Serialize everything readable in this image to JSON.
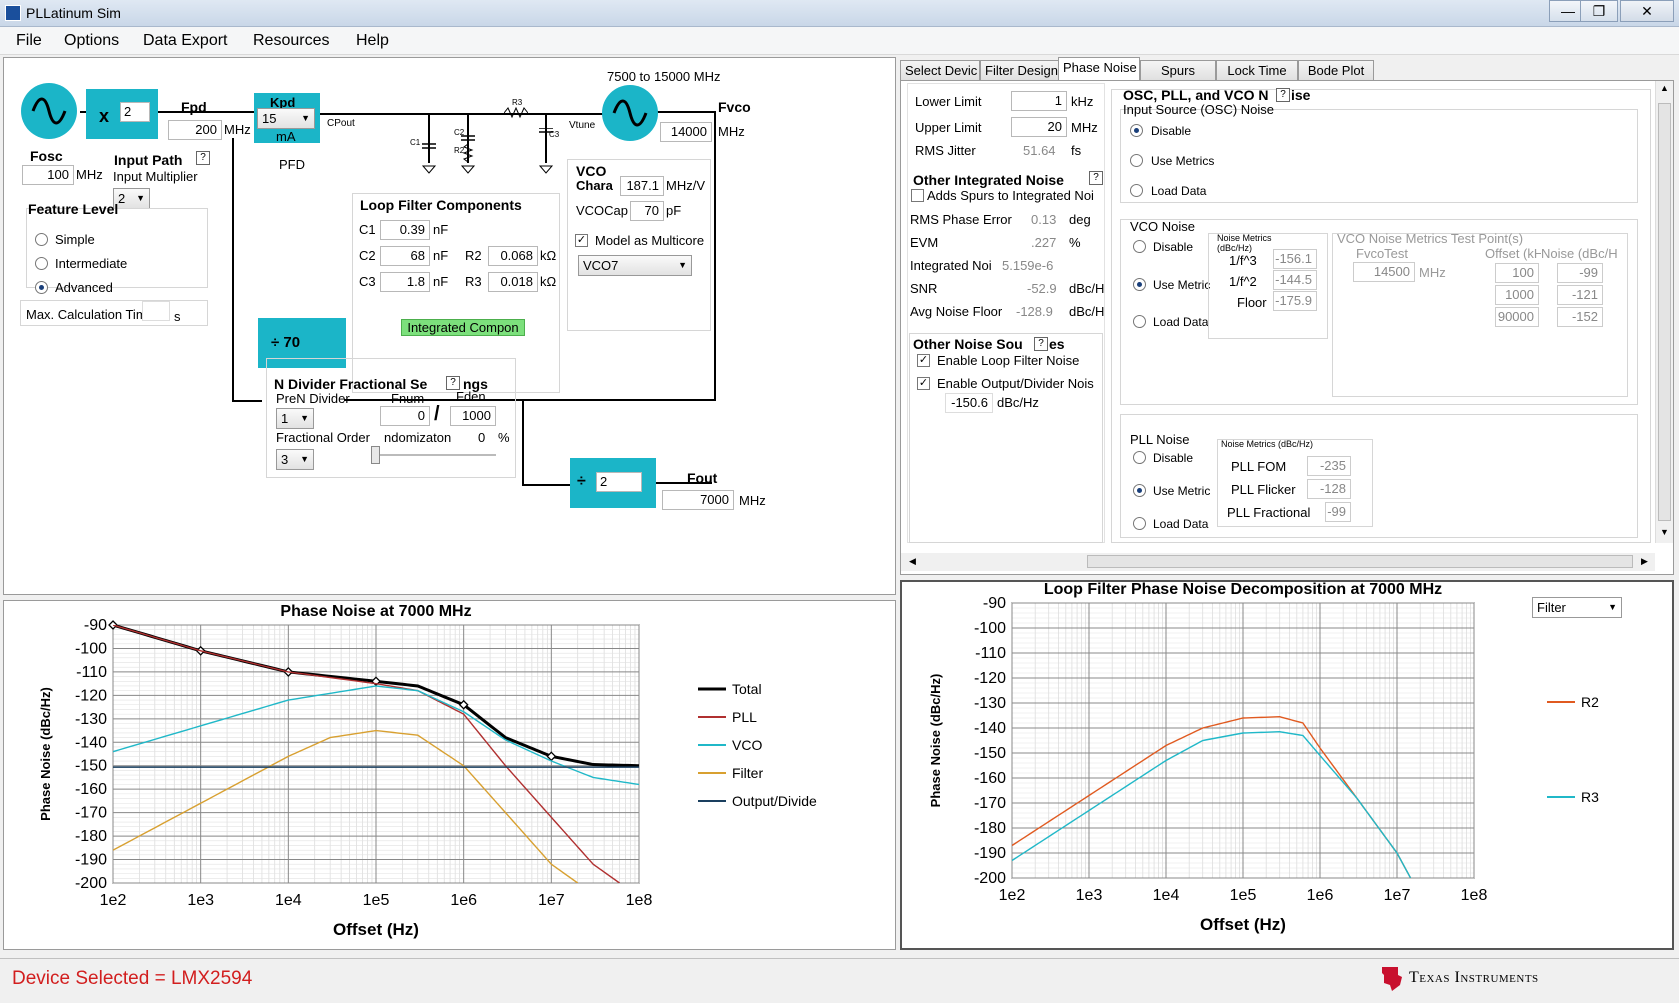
{
  "window": {
    "title": "PLLatinum Sim",
    "controls": [
      "—",
      "❐",
      "✕"
    ]
  },
  "menu": [
    "File",
    "Options",
    "Data Export",
    "Resources",
    "Help"
  ],
  "schematic": {
    "osc_label": "Fosc",
    "osc_value": "100",
    "osc_unit": "MHz",
    "multiplier_prefix": "x",
    "multiplier_value": "2",
    "input_path_label": "Input Path",
    "input_multiplier_label": "Input Multiplier",
    "input_multiplier_value": "2",
    "fpd_label": "Fpd",
    "fpd_value": "200",
    "fpd_unit": "MHz",
    "kpd_label": "Kpd",
    "kpd_value": "15",
    "kpd_unit": "mA",
    "pfd_label": "PFD",
    "cpout_label": "CPout",
    "vtune_label": "Vtune",
    "vco_range_label": "7500 to 15000 MHz",
    "fvco_label": "Fvco",
    "fvco_value": "14000",
    "fvco_unit": "MHz",
    "c1_net": "C1",
    "c2_net": "C2",
    "r2_net": "R2",
    "r3_net": "R3",
    "c3_net": "C3",
    "feature_level_label": "Feature Level",
    "feature_levels": [
      "Simple",
      "Intermediate",
      "Advanced"
    ],
    "max_calc_label": "Max. Calculation Time",
    "max_calc_unit": "s",
    "loop_filter_title": "Loop Filter Components",
    "c1_label": "C1",
    "c1_value": "0.39",
    "c1_unit": "nF",
    "c2_label": "C2",
    "c2_value": "68",
    "c2_unit": "nF",
    "c3_label": "C3",
    "c3_value": "1.8",
    "c3_unit": "nF",
    "r2_label": "R2",
    "r2_value": "0.068",
    "r2_unit": "kΩ",
    "r3_label": "R3",
    "r3_value": "0.018",
    "r3_unit": "kΩ",
    "integrated_button": "Integrated Compon",
    "vco_title": "VCO",
    "vco_chara_label": "Chara",
    "vco_kvco_value": "187.1",
    "vco_kvco_unit": "MHz/V",
    "vcocap_label": "VCOCap",
    "vcocap_value": "70",
    "vcocap_unit": "pF",
    "multicore_label": "Model as Multicore",
    "vco_select": "VCO7",
    "n_divider_label": "÷ 70",
    "n_frac_title": "N Divider Fractional Se",
    "n_frac_title_tail": "ngs",
    "pren_label": "PreN Divider",
    "pren_value": "1",
    "fnum_label": "Fnum",
    "fnum_value": "0",
    "fden_label": "Fden",
    "fden_value": "1000",
    "frac_slash": "/",
    "frac_order_label": "Fractional Order",
    "frac_order_value": "3",
    "random_label": "ndomizaton",
    "random_value": "0",
    "random_unit": "%",
    "out_div_prefix": "÷",
    "out_div_value": "2",
    "fout_label": "Fout",
    "fout_value": "7000",
    "fout_unit": "MHz"
  },
  "tabs": [
    "Select Devic",
    "Filter Design",
    "Phase Noise",
    "Spurs",
    "Lock Time",
    "Bode Plot"
  ],
  "phase_noise": {
    "lower_limit_label": "Lower Limit",
    "lower_limit_value": "1",
    "lower_limit_unit": "kHz",
    "upper_limit_label": "Upper Limit",
    "upper_limit_value": "20",
    "upper_limit_unit": "MHz",
    "rms_jitter_label": "RMS Jitter",
    "rms_jitter_value": "51.64",
    "rms_jitter_unit": "fs",
    "other_integrated_label": "Other Integrated Noise",
    "add_spurs_label": "Adds Spurs to Integrated Noi",
    "rms_phase_error_label": "RMS Phase Error",
    "rms_phase_error_value": "0.13",
    "rms_phase_error_unit": "deg",
    "evm_label": "EVM",
    "evm_value": ".227",
    "evm_unit": "%",
    "integrated_noise_label": "Integrated Noi",
    "integrated_noise_value": "5.159e-6",
    "snr_label": "SNR",
    "snr_value": "-52.9",
    "snr_unit": "dBc/H",
    "avg_floor_label": "Avg Noise Floor",
    "avg_floor_value": "-128.9",
    "avg_floor_unit": "dBc/H",
    "other_sources_label": "Other Noise Sou",
    "other_sources_tail": "es",
    "enable_loop_filter_label": "Enable Loop Filter Noise",
    "enable_output_label": "Enable Output/Divider Nois",
    "output_noise_value": "-150.6",
    "output_noise_unit": "dBc/Hz",
    "osc_group_title": "OSC, PLL, and VCO N",
    "osc_group_tail": "ise",
    "input_source_label": "Input Source (OSC) Noise",
    "opt_disable": "Disable",
    "opt_use_metrics": "Use Metrics",
    "opt_use_metric": "Use Metric",
    "opt_load_data": "Load Data",
    "vco_noise_label": "VCO Noise",
    "noise_metrics_label": "Noise Metrics",
    "noise_metrics_unit": "(dBc/Hz)",
    "noise_metrics_db": "Noise Metrics (dBc/Hz)",
    "one_f3_label": "1/f^3",
    "one_f3_value": "-156.1",
    "one_f2_label": "1/f^2",
    "one_f2_value": "-144.5",
    "floor_label": "Floor",
    "floor_value": "-175.9",
    "test_points_label": "VCO Noise Metrics Test Point(s)",
    "fvcotest_label": "FvcoTest",
    "fvcotest_value": "14500",
    "fvcotest_unit": "MHz",
    "offset_col": "Offset (kH",
    "noise_col": "Noise (dBc/H",
    "test_rows": [
      [
        "100",
        "-99"
      ],
      [
        "1000",
        "-121"
      ],
      [
        "90000",
        "-152"
      ]
    ],
    "pll_noise_label": "PLL Noise",
    "pll_fom_label": "PLL FOM",
    "pll_fom_value": "-235",
    "pll_flicker_label": "PLL Flicker",
    "pll_flicker_value": "-128",
    "pll_frac_label": "PLL Fractional",
    "pll_frac_value": "-99"
  },
  "chart_data": [
    {
      "type": "line",
      "title": "Phase Noise at 7000 MHz",
      "xlabel": "Offset (Hz)",
      "ylabel": "Phase Noise (dBc/Hz)",
      "xscale": "log",
      "xlim": [
        100,
        100000000
      ],
      "ylim": [
        -200,
        -90
      ],
      "xticks": [
        "1e2",
        "1e3",
        "1e4",
        "1e5",
        "1e6",
        "1e7",
        "1e8"
      ],
      "yticks": [
        "-90",
        "-100",
        "-110",
        "-120",
        "-130",
        "-140",
        "-150",
        "-160",
        "-170",
        "-180",
        "-190",
        "-200"
      ],
      "legend": "right",
      "series": [
        {
          "name": "Total",
          "color": "#000000",
          "x": [
            100,
            1000,
            10000,
            100000,
            300000,
            1000000,
            3000000,
            10000000,
            30000000,
            100000000
          ],
          "y": [
            -90,
            -101,
            -110,
            -114,
            -116,
            -124,
            -138,
            -146,
            -149.5,
            -150
          ]
        },
        {
          "name": "PLL",
          "color": "#b03030",
          "x": [
            100,
            1000,
            10000,
            100000,
            300000,
            1000000,
            3000000,
            10000000,
            30000000,
            60000000
          ],
          "y": [
            -90,
            -101,
            -110,
            -115,
            -118,
            -128,
            -150,
            -172,
            -192,
            -200
          ]
        },
        {
          "name": "VCO",
          "color": "#20b8c8",
          "x": [
            100,
            1000,
            10000,
            100000,
            300000,
            1000000,
            3000000,
            10000000,
            30000000,
            100000000
          ],
          "y": [
            -144,
            -133,
            -122,
            -116,
            -118,
            -127,
            -139,
            -148,
            -155,
            -158
          ]
        },
        {
          "name": "Filter",
          "color": "#d8a030",
          "x": [
            100,
            1000,
            10000,
            30000,
            100000,
            300000,
            1000000,
            3000000,
            10000000,
            20000000
          ],
          "y": [
            -186,
            -166,
            -146,
            -138,
            -135,
            -137,
            -150,
            -170,
            -192,
            -200
          ]
        },
        {
          "name": "Output/Divide",
          "color": "#1a3f5f",
          "x": [
            100,
            100000000
          ],
          "y": [
            -150.6,
            -150.6
          ]
        }
      ],
      "markers_on": "Total"
    },
    {
      "type": "line",
      "title": "Loop Filter Phase Noise Decomposition at 7000 MHz",
      "xlabel": "Offset (Hz)",
      "ylabel": "Phase Noise (dBc/Hz)",
      "xscale": "log",
      "xlim": [
        100,
        100000000
      ],
      "ylim": [
        -200,
        -90
      ],
      "xticks": [
        "1e2",
        "1e3",
        "1e4",
        "1e5",
        "1e6",
        "1e7",
        "1e8"
      ],
      "yticks": [
        "-90",
        "-100",
        "-110",
        "-120",
        "-130",
        "-140",
        "-150",
        "-160",
        "-170",
        "-180",
        "-190",
        "-200"
      ],
      "legend": "right",
      "selector": "Filter",
      "series": [
        {
          "name": "R2",
          "color": "#e05a20",
          "x": [
            100,
            1000,
            10000,
            30000,
            100000,
            300000,
            600000,
            1000000,
            3000000,
            10000000,
            15000000
          ],
          "y": [
            -187,
            -167,
            -147,
            -140,
            -136,
            -135.5,
            -138,
            -148,
            -168,
            -190,
            -200
          ]
        },
        {
          "name": "R3",
          "color": "#20b8c8",
          "x": [
            100,
            1000,
            10000,
            30000,
            100000,
            300000,
            600000,
            1000000,
            3000000,
            10000000,
            15000000
          ],
          "y": [
            -193,
            -173,
            -153,
            -145,
            -142,
            -141.5,
            -143,
            -151,
            -168,
            -190,
            -200
          ]
        }
      ]
    }
  ],
  "status": {
    "device_selected": "Device Selected = LMX2594",
    "logo_text": "Texas Instruments"
  }
}
